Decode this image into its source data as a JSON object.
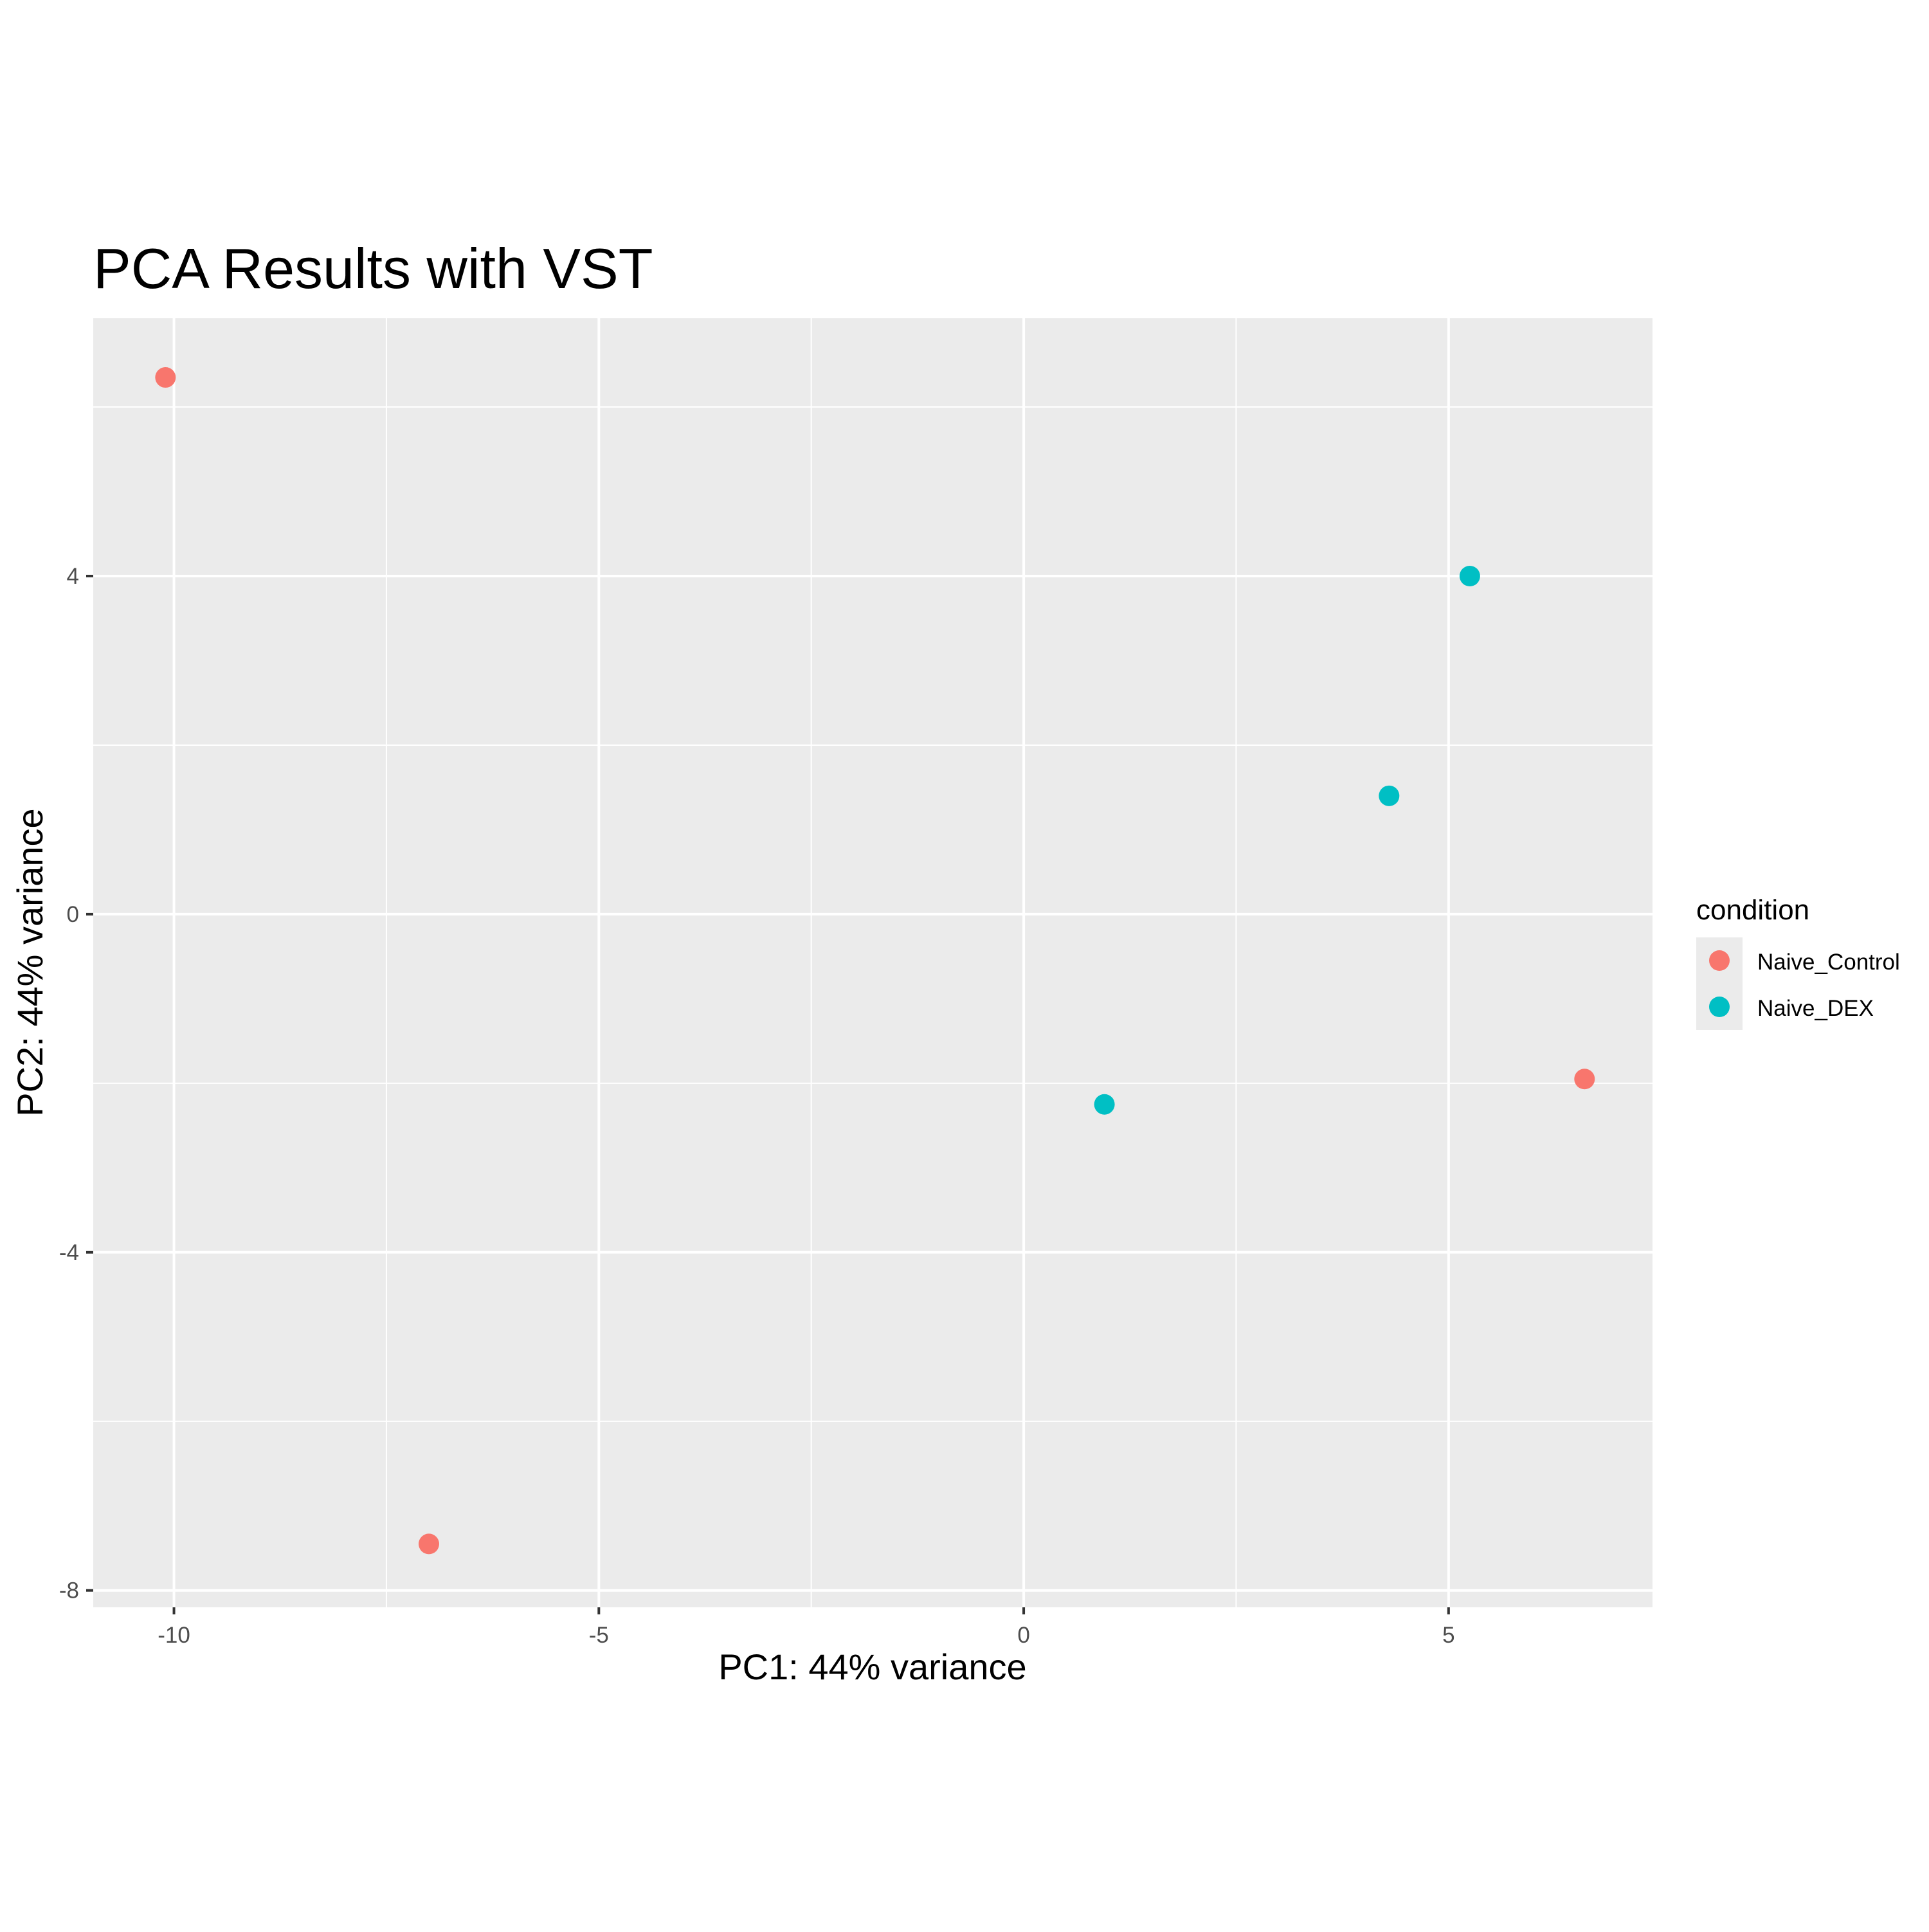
{
  "chart_data": {
    "type": "scatter",
    "title": "PCA Results with VST",
    "xlabel": "PC1: 44% variance",
    "ylabel": "PC2: 44% variance",
    "xlim": [
      -10.95,
      7.4
    ],
    "ylim": [
      -8.2,
      7.05
    ],
    "x_ticks": [
      -10,
      -5,
      0,
      5
    ],
    "x_tick_labels": [
      "-10",
      "-5",
      "0",
      "5"
    ],
    "x_minor_ticks": [
      -7.5,
      -2.5,
      2.5
    ],
    "y_ticks": [
      -8,
      -4,
      0,
      4
    ],
    "y_tick_labels": [
      "-8",
      "-4",
      "0",
      "4"
    ],
    "y_minor_ticks": [
      -6,
      -2,
      2,
      6
    ],
    "grid": true,
    "legend": {
      "title": "condition",
      "placement": "right",
      "entries": [
        "Naive_Control",
        "Naive_DEX"
      ]
    },
    "series": [
      {
        "name": "Naive_Control",
        "color": "#F8766D",
        "points": [
          {
            "x": -10.1,
            "y": 6.35
          },
          {
            "x": -7.0,
            "y": -7.45
          },
          {
            "x": 6.6,
            "y": -1.95
          }
        ]
      },
      {
        "name": "Naive_DEX",
        "color": "#00BFC4",
        "points": [
          {
            "x": 5.25,
            "y": 4.0
          },
          {
            "x": 4.3,
            "y": 1.4
          },
          {
            "x": 0.95,
            "y": -2.25
          }
        ]
      }
    ]
  }
}
